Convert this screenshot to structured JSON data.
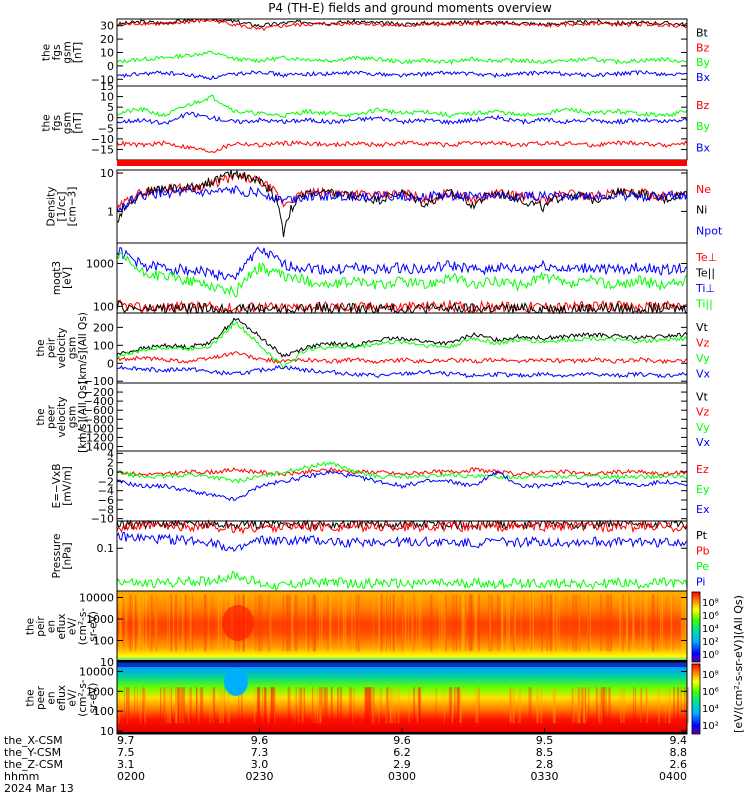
{
  "title": "P4 (TH-E) fields and ground moments overview",
  "colors": {
    "black": "#000000",
    "red": "#ff0000",
    "green": "#00ff00",
    "blue": "#0000ff",
    "frame": "#000000"
  },
  "chart_data": [
    {
      "type": "line",
      "id": "p1",
      "ylabel_lines": [
        "the",
        "fgs",
        "gsm",
        "[nT]"
      ],
      "ylim": [
        -15,
        35
      ],
      "yticks": [
        {
          "v": 30,
          "t": "30"
        },
        {
          "v": 20,
          "t": "20"
        },
        {
          "v": 10,
          "t": "10"
        },
        {
          "v": 0,
          "t": "0"
        },
        {
          "v": -10,
          "t": "−10"
        }
      ],
      "series": [
        {
          "name": "Bt",
          "color": "#000000",
          "values": [
            31,
            33,
            32,
            34,
            35,
            33,
            30,
            32,
            33,
            32,
            33,
            32,
            31,
            32,
            32,
            33,
            32,
            32,
            31,
            32,
            33,
            32,
            32,
            32,
            31
          ]
        },
        {
          "name": "Bz",
          "color": "#ff0000",
          "values": [
            30,
            32,
            31,
            33,
            34,
            31,
            27,
            30,
            31,
            31,
            32,
            31,
            30,
            31,
            31,
            32,
            31,
            31,
            30,
            31,
            32,
            31,
            31,
            31,
            30
          ]
        },
        {
          "name": "By",
          "color": "#00ff00",
          "values": [
            3,
            5,
            6,
            8,
            10,
            5,
            4,
            6,
            5,
            4,
            6,
            5,
            3,
            4,
            3,
            5,
            4,
            4,
            3,
            4,
            5,
            3,
            4,
            5,
            3
          ]
        },
        {
          "name": "Bx",
          "color": "#0000ff",
          "values": [
            -8,
            -6,
            -5,
            -7,
            -9,
            -6,
            -4,
            -7,
            -6,
            -6,
            -5,
            -6,
            -7,
            -6,
            -5,
            -6,
            -7,
            -6,
            -5,
            -6,
            -7,
            -6,
            -5,
            -6,
            -7
          ]
        }
      ]
    },
    {
      "type": "line",
      "id": "p2",
      "ylabel_lines": [
        "the",
        "fgs",
        "gsm",
        "[nT]"
      ],
      "ylim": [
        -20,
        15
      ],
      "yticks": [
        {
          "v": 15,
          "t": "15"
        },
        {
          "v": 10,
          "t": "10"
        },
        {
          "v": 5,
          "t": "5"
        },
        {
          "v": 0,
          "t": "0"
        },
        {
          "v": -5,
          "t": "−5"
        },
        {
          "v": -10,
          "t": "−10"
        },
        {
          "v": -15,
          "t": "−15"
        }
      ],
      "series": [
        {
          "name": "Bz",
          "color": "#ff0000",
          "values": [
            -12,
            -13,
            -12,
            -14,
            -16,
            -12,
            -13,
            -12,
            -12,
            -13,
            -12,
            -13,
            -12,
            -12,
            -13,
            -12,
            -12,
            -13,
            -12,
            -12,
            -13,
            -12,
            -12,
            -13,
            -12
          ]
        },
        {
          "name": "By",
          "color": "#00ff00",
          "values": [
            2,
            4,
            1,
            6,
            10,
            3,
            2,
            1,
            3,
            2,
            1,
            4,
            2,
            3,
            1,
            2,
            3,
            1,
            2,
            4,
            2,
            3,
            2,
            1,
            3
          ]
        },
        {
          "name": "Bx",
          "color": "#0000ff",
          "values": [
            -2,
            -1,
            -3,
            2,
            0,
            -2,
            -1,
            -2,
            -1,
            -2,
            -1,
            0,
            -2,
            -1,
            -2,
            -1,
            0,
            -2,
            -1,
            -2,
            -1,
            -2,
            -1,
            -2,
            -1
          ]
        }
      ]
    },
    {
      "type": "line",
      "id": "p3",
      "scale": "log",
      "ylabel_lines": [
        "Density",
        "[1/cc]",
        "[cm−3]"
      ],
      "ylim": [
        0.15,
        12
      ],
      "yticks": [
        {
          "v": 10,
          "t": "10"
        },
        {
          "v": 1,
          "t": "1"
        }
      ],
      "series": [
        {
          "name": "Ne",
          "color": "#ff0000",
          "values": [
            1,
            3,
            4,
            4,
            5,
            8,
            6,
            1.5,
            3,
            3,
            3,
            2.5,
            3,
            2,
            3,
            2,
            3,
            2.5,
            2,
            3,
            2.5,
            3,
            3,
            2.5,
            3
          ]
        },
        {
          "name": "Ni",
          "color": "#000000",
          "values": [
            0.5,
            3,
            4,
            4,
            6,
            10,
            6,
            0.2,
            3,
            3,
            2.5,
            2,
            3,
            1.5,
            3,
            1.5,
            3,
            2,
            1.2,
            3,
            2,
            3,
            3,
            2,
            3
          ]
        },
        {
          "name": "Npot",
          "color": "#0000ff",
          "values": [
            1,
            2.5,
            3,
            3,
            3,
            3.5,
            3,
            2,
            2.5,
            2.5,
            2.5,
            2.5,
            2.5,
            2.5,
            2.5,
            2.5,
            2.5,
            2.5,
            2.5,
            2.5,
            2.5,
            2.5,
            2.5,
            2.5,
            2.5
          ]
        }
      ]
    },
    {
      "type": "line",
      "id": "p4",
      "scale": "log",
      "ylabel_lines": [
        "moqt3",
        "[eV]"
      ],
      "ylim": [
        70,
        3000
      ],
      "yticks": [
        {
          "v": 1000,
          "t": "1000"
        },
        {
          "v": 100,
          "t": "100"
        }
      ],
      "series": [
        {
          "name": "Te⊥",
          "color": "#ff0000",
          "values": [
            110,
            90,
            95,
            100,
            95,
            90,
            100,
            90,
            100,
            100,
            95,
            100,
            95,
            100,
            100,
            95,
            100,
            95,
            100,
            95,
            100,
            100,
            95,
            100,
            100
          ]
        },
        {
          "name": "Te||",
          "color": "#000000",
          "values": [
            100,
            85,
            90,
            90,
            88,
            85,
            90,
            85,
            90,
            90,
            88,
            90,
            88,
            90,
            90,
            88,
            90,
            88,
            90,
            88,
            90,
            90,
            88,
            90,
            90
          ]
        },
        {
          "name": "Ti⊥",
          "color": "#0000ff",
          "values": [
            2000,
            900,
            800,
            700,
            600,
            400,
            2000,
            900,
            800,
            700,
            800,
            700,
            800,
            700,
            900,
            700,
            800,
            700,
            900,
            700,
            800,
            700,
            800,
            700,
            800
          ]
        },
        {
          "name": "Ti||",
          "color": "#00ff00",
          "values": [
            1500,
            600,
            500,
            400,
            300,
            200,
            800,
            500,
            400,
            300,
            400,
            300,
            400,
            300,
            500,
            300,
            400,
            300,
            500,
            300,
            400,
            300,
            400,
            300,
            400
          ]
        }
      ]
    },
    {
      "type": "line",
      "id": "p5",
      "ylabel_lines": [
        "the",
        "peir",
        "velocity",
        "gsm",
        "[km/s](All Qs)"
      ],
      "ylim": [
        -110,
        280
      ],
      "yticks": [
        {
          "v": 200,
          "t": "200"
        },
        {
          "v": 100,
          "t": "100"
        },
        {
          "v": 0,
          "t": "0"
        },
        {
          "v": -100,
          "t": "−100"
        }
      ],
      "series": [
        {
          "name": "Vt",
          "color": "#000000",
          "values": [
            50,
            80,
            100,
            90,
            120,
            250,
            150,
            40,
            90,
            110,
            100,
            130,
            140,
            120,
            110,
            160,
            130,
            150,
            140,
            150,
            160,
            150,
            140,
            150,
            160
          ]
        },
        {
          "name": "Vz",
          "color": "#ff0000",
          "values": [
            20,
            30,
            20,
            10,
            30,
            60,
            20,
            10,
            20,
            10,
            20,
            10,
            20,
            10,
            20,
            10,
            20,
            10,
            20,
            10,
            20,
            10,
            20,
            10,
            20
          ]
        },
        {
          "name": "Vy",
          "color": "#00ff00",
          "values": [
            40,
            70,
            90,
            80,
            100,
            230,
            100,
            -20,
            80,
            90,
            90,
            110,
            120,
            100,
            90,
            140,
            110,
            130,
            120,
            130,
            140,
            130,
            120,
            130,
            140
          ]
        },
        {
          "name": "Vx",
          "color": "#0000ff",
          "values": [
            -20,
            -30,
            -40,
            -30,
            -50,
            -60,
            -40,
            -20,
            -40,
            -50,
            -60,
            -70,
            -60,
            -50,
            -60,
            -70,
            -60,
            -70,
            -60,
            -70,
            -60,
            -70,
            -60,
            -70,
            -60
          ]
        }
      ]
    },
    {
      "type": "line",
      "id": "p6",
      "ylabel_lines": [
        "the",
        "peer",
        "velocity",
        "gsm",
        "[km/s](All Qs)"
      ],
      "ylim": [
        -1500,
        0
      ],
      "yticks": [
        {
          "v": -200,
          "t": "−200"
        },
        {
          "v": -400,
          "t": "−400"
        },
        {
          "v": -600,
          "t": "−600"
        },
        {
          "v": -800,
          "t": "−800"
        },
        {
          "v": -1000,
          "t": "−1000"
        },
        {
          "v": -1200,
          "t": "−1200"
        },
        {
          "v": -1400,
          "t": "−1400"
        }
      ],
      "series": [
        {
          "name": "Vt",
          "color": "#000000",
          "values": []
        },
        {
          "name": "Vz",
          "color": "#ff0000",
          "values": []
        },
        {
          "name": "Vy",
          "color": "#00ff00",
          "values": []
        },
        {
          "name": "Vx",
          "color": "#0000ff",
          "values": []
        }
      ]
    },
    {
      "type": "line",
      "id": "p7",
      "ylabel_lines": [
        "E=−VxB",
        "[mV/m]"
      ],
      "ylim": [
        -10.5,
        4.5
      ],
      "yticks": [
        {
          "v": 4,
          "t": "4"
        },
        {
          "v": 2,
          "t": "2"
        },
        {
          "v": 0,
          "t": "0"
        },
        {
          "v": -2,
          "t": "−2"
        },
        {
          "v": -4,
          "t": "−4"
        },
        {
          "v": -6,
          "t": "−6"
        },
        {
          "v": -8,
          "t": "−8"
        },
        {
          "v": -10,
          "t": "−10"
        }
      ],
      "series": [
        {
          "name": "Ez",
          "color": "#ff0000",
          "values": [
            0,
            -0.5,
            -0.5,
            0,
            0,
            0.5,
            0,
            -0.5,
            0,
            0.5,
            0,
            0,
            -0.5,
            0,
            0,
            0.5,
            0,
            -0.5,
            0,
            0,
            -0.5,
            0,
            0,
            -0.5,
            0
          ]
        },
        {
          "name": "Ey",
          "color": "#00ff00",
          "values": [
            0,
            -1,
            -1,
            -0.5,
            -1,
            -2,
            -1,
            0,
            1,
            2,
            0,
            -1,
            -1,
            -1,
            -0.5,
            -1,
            -1,
            -1,
            -1,
            -1,
            -1,
            -1,
            -1,
            -1,
            -1
          ]
        },
        {
          "name": "Ex",
          "color": "#0000ff",
          "values": [
            -2,
            -3,
            -3,
            -4,
            -5,
            -6,
            -3,
            -2,
            -1,
            0,
            -1,
            -2,
            -3,
            -2,
            -2,
            -3,
            0,
            -3,
            -3,
            -2,
            -3,
            -2,
            -3,
            -2,
            -3
          ]
        }
      ]
    },
    {
      "type": "line",
      "id": "p8",
      "scale": "log",
      "ylabel_lines": [
        "Pressure",
        "[nPa]"
      ],
      "ylim": [
        0.008,
        0.5
      ],
      "yticks": [
        {
          "v": 0.1,
          "t": "0.1"
        }
      ],
      "series": [
        {
          "name": "Pt",
          "color": "#000000",
          "values": [
            0.4,
            0.42,
            0.42,
            0.41,
            0.43,
            0.4,
            0.42,
            0.42,
            0.41,
            0.42,
            0.42,
            0.41,
            0.42,
            0.42,
            0.41,
            0.42,
            0.41,
            0.42,
            0.42,
            0.41,
            0.42,
            0.41,
            0.42,
            0.42,
            0.41
          ]
        },
        {
          "name": "Pb",
          "color": "#ff0000",
          "values": [
            0.35,
            0.36,
            0.37,
            0.36,
            0.37,
            0.3,
            0.34,
            0.36,
            0.36,
            0.35,
            0.36,
            0.35,
            0.36,
            0.36,
            0.35,
            0.36,
            0.35,
            0.36,
            0.36,
            0.35,
            0.36,
            0.35,
            0.36,
            0.36,
            0.35
          ]
        },
        {
          "name": "Pe",
          "color": "#00ff00",
          "values": [
            0.015,
            0.012,
            0.013,
            0.014,
            0.015,
            0.02,
            0.012,
            0.011,
            0.013,
            0.014,
            0.012,
            0.013,
            0.012,
            0.013,
            0.012,
            0.013,
            0.012,
            0.013,
            0.012,
            0.013,
            0.012,
            0.013,
            0.012,
            0.013,
            0.012
          ]
        },
        {
          "name": "Pi",
          "color": "#0000ff",
          "values": [
            0.2,
            0.18,
            0.17,
            0.16,
            0.15,
            0.08,
            0.16,
            0.15,
            0.16,
            0.15,
            0.14,
            0.15,
            0.14,
            0.15,
            0.14,
            0.13,
            0.15,
            0.14,
            0.15,
            0.14,
            0.15,
            0.14,
            0.15,
            0.14,
            0.15
          ]
        }
      ]
    },
    {
      "type": "heatmap",
      "id": "p9",
      "scale": "log",
      "ylabel_lines": [
        "the",
        "peir",
        "en",
        "eflux",
        "eV/",
        "(cm²-s-",
        "sr-eV)"
      ],
      "ylim": [
        10,
        20000
      ],
      "yticks": [
        {
          "v": 10000,
          "t": "10000"
        },
        {
          "v": 1000,
          "t": "1000"
        },
        {
          "v": 100,
          "t": "100"
        },
        {
          "v": 10,
          "t": "10"
        }
      ]
    },
    {
      "type": "heatmap",
      "id": "p10",
      "scale": "log",
      "ylabel_lines": [
        "the",
        "peer",
        "en",
        "eflux",
        "eV/",
        "(cm²-s-",
        "sr-eV)"
      ],
      "ylim": [
        7,
        30000
      ],
      "yticks": [
        {
          "v": 10000,
          "t": "10000"
        },
        {
          "v": 1000,
          "t": "1000"
        },
        {
          "v": 100,
          "t": "100"
        },
        {
          "v": 10,
          "t": "10"
        }
      ]
    }
  ],
  "colorbar": {
    "unit_label": "[eV/(cm²-s-sr-eV)](All Qs)",
    "upper_ticks": [
      "10⁸",
      "10⁶",
      "10⁴",
      "10²",
      "10⁰"
    ],
    "lower_ticks": [
      "10⁸",
      "10⁶",
      "10⁴",
      "10²"
    ]
  },
  "x_axis": {
    "row_labels": [
      "the_X-CSM",
      "the_Y-CSM",
      "the_Z-CSM",
      "hhmm",
      "2024 Mar 13"
    ],
    "ticks": [
      {
        "x": 0.0,
        "X": "9.7",
        "Y": "7.5",
        "Z": "3.1",
        "hhmm": "0200"
      },
      {
        "x": 0.25,
        "X": "9.6",
        "Y": "7.3",
        "Z": "3.0",
        "hhmm": "0230"
      },
      {
        "x": 0.5,
        "X": "9.6",
        "Y": "6.2",
        "Z": "2.9",
        "hhmm": "0300"
      },
      {
        "x": 0.75,
        "X": "9.5",
        "Y": "8.5",
        "Z": "2.8",
        "hhmm": "0330"
      },
      {
        "x": 1.0,
        "X": "9.4",
        "Y": "8.8",
        "Z": "2.6",
        "hhmm": "0400"
      }
    ]
  }
}
